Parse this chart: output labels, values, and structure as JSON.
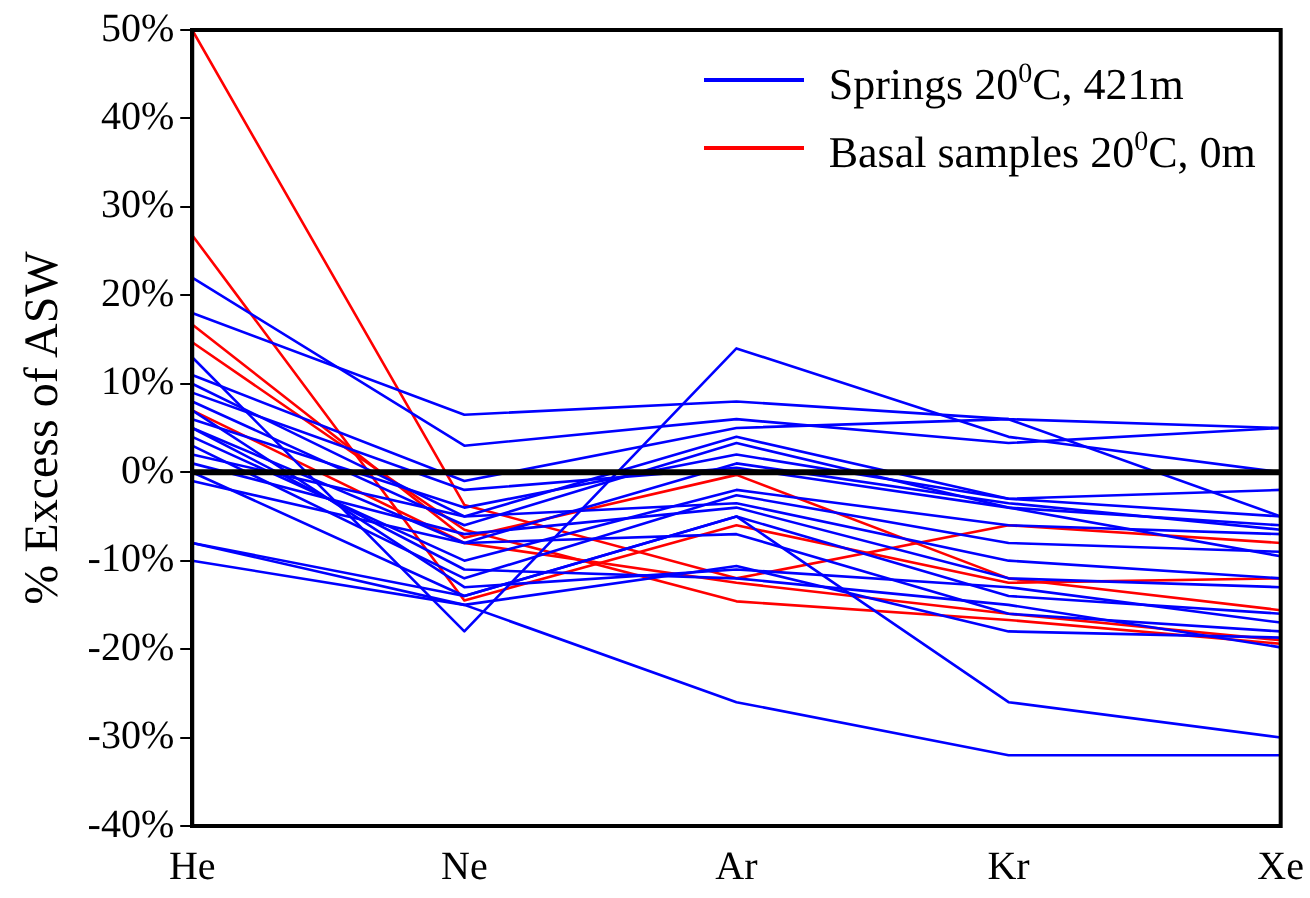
{
  "chart_data": {
    "type": "line",
    "ylabel": "% Excess of ASW",
    "categories": [
      "He",
      "Ne",
      "Ar",
      "Kr",
      "Xe"
    ],
    "ylim": [
      -40,
      50
    ],
    "yticks": [
      {
        "value": -40,
        "label": "-40%"
      },
      {
        "value": -30,
        "label": "-30%"
      },
      {
        "value": -20,
        "label": "-20%"
      },
      {
        "value": -10,
        "label": "-10%"
      },
      {
        "value": 0,
        "label": "0%"
      },
      {
        "value": 10,
        "label": "10%"
      },
      {
        "value": 20,
        "label": "20%"
      },
      {
        "value": 30,
        "label": "30%"
      },
      {
        "value": 40,
        "label": "40%"
      },
      {
        "value": 50,
        "label": "50%"
      }
    ],
    "grid": false,
    "legend": "top right",
    "marker": "none",
    "line_style": "solid",
    "ref_lines": [
      {
        "axis": "y",
        "value": 0,
        "color": "#000000"
      }
    ],
    "series": [
      {
        "name": "Springs 20$^{0}$C, 421m",
        "color": "#0000ff",
        "values": [
          13,
          -18,
          14,
          4,
          0
        ]
      },
      {
        "color": "#0000ff",
        "values": [
          18,
          6.5,
          8,
          6,
          5
        ]
      },
      {
        "color": "#0000ff",
        "values": [
          22,
          3,
          6,
          3.3,
          5
        ]
      },
      {
        "color": "#0000ff",
        "values": [
          11,
          -1,
          5,
          6,
          -5
        ]
      },
      {
        "color": "#0000ff",
        "values": [
          10,
          -5,
          4,
          -3,
          -2
        ]
      },
      {
        "color": "#0000ff",
        "values": [
          8,
          -6,
          3.3,
          -4,
          -6
        ]
      },
      {
        "color": "#0000ff",
        "values": [
          5,
          -8,
          1,
          -3.5,
          -6.5
        ]
      },
      {
        "color": "#0000ff",
        "values": [
          4,
          -10,
          -2,
          -6,
          -7
        ]
      },
      {
        "color": "#0000ff",
        "values": [
          3,
          -12,
          -2.6,
          -8,
          -9
        ]
      },
      {
        "color": "#0000ff",
        "values": [
          2,
          -5,
          -3.5,
          -10,
          -12
        ]
      },
      {
        "color": "#0000ff",
        "values": [
          1,
          -7,
          -4,
          -12,
          -13
        ]
      },
      {
        "color": "#0000ff",
        "values": [
          0,
          -14,
          -5,
          -14,
          -16
        ]
      },
      {
        "color": "#0000ff",
        "values": [
          -1,
          -8,
          -7,
          -16,
          -18
        ]
      },
      {
        "color": "#0000ff",
        "values": [
          -8,
          -15,
          -10.6,
          -18,
          -18.7
        ]
      },
      {
        "color": "#0000ff",
        "values": [
          -10,
          -15,
          -26,
          -32,
          -32
        ]
      },
      {
        "color": "#0000ff",
        "values": [
          -8,
          -14,
          -5,
          -26,
          -30
        ]
      },
      {
        "color": "#0000ff",
        "values": [
          6,
          -4,
          2,
          -3,
          -5
        ]
      },
      {
        "color": "#0000ff",
        "values": [
          9,
          -2,
          0.5,
          -4,
          -9.5
        ]
      },
      {
        "color": "#0000ff",
        "values": [
          7,
          -13,
          -11,
          -13,
          -17
        ]
      },
      {
        "color": "#0000ff",
        "values": [
          5,
          -11,
          -12,
          -15,
          -19.8
        ]
      },
      {
        "name": "Basal samples 20$^{0}$C, 0m",
        "color": "#ff0000",
        "values": [
          50,
          -3.7,
          -12,
          -6,
          -8
        ]
      },
      {
        "color": "#ff0000",
        "values": [
          26.8,
          -14.5,
          -6,
          -12.5,
          -12
        ]
      },
      {
        "color": "#ff0000",
        "values": [
          16.7,
          -7.4,
          -0.3,
          -12,
          -15.6
        ]
      },
      {
        "color": "#ff0000",
        "values": [
          14.7,
          -6.5,
          -14.6,
          -16.7,
          -19.4
        ]
      },
      {
        "color": "#ff0000",
        "values": [
          7,
          -8,
          -12.5,
          -16,
          -19
        ]
      }
    ]
  }
}
